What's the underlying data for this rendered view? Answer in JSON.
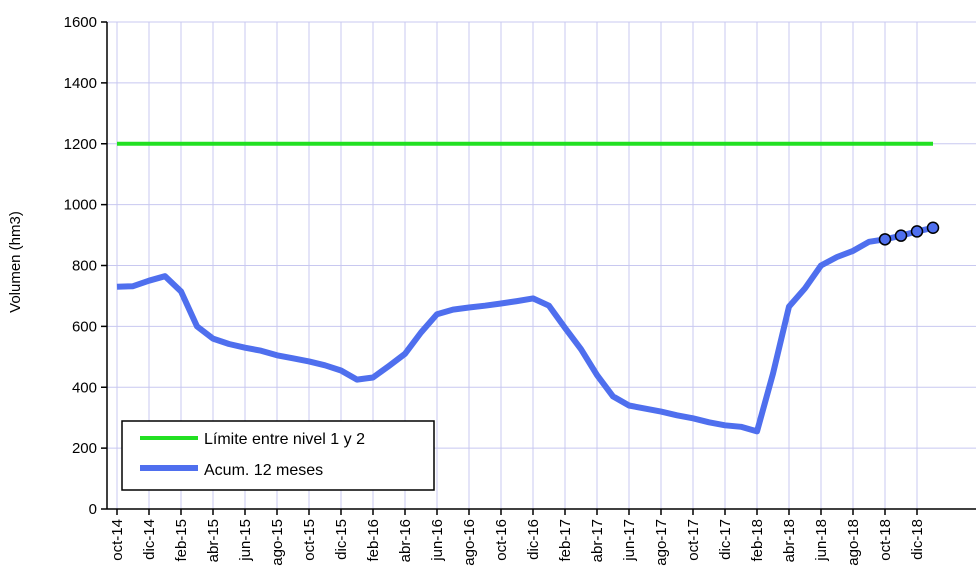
{
  "chart_data": {
    "type": "line",
    "ylabel": "Volumen (hm3)",
    "ylim": [
      0,
      1600
    ],
    "yticks": [
      0,
      200,
      400,
      600,
      800,
      1000,
      1200,
      1400,
      1600
    ],
    "x_tick_labels": [
      "oct-14",
      "dic-14",
      "feb-15",
      "abr-15",
      "jun-15",
      "ago-15",
      "oct-15",
      "dic-15",
      "feb-16",
      "abr-16",
      "jun-16",
      "ago-16",
      "oct-16",
      "dic-16",
      "feb-17",
      "abr-17",
      "jun-17",
      "ago-17",
      "oct-17",
      "dic-17",
      "feb-18",
      "abr-18",
      "jun-18",
      "ago-18",
      "oct-18",
      "dic-18"
    ],
    "x_start": "oct-14",
    "x_unit": "month",
    "grid": true,
    "legend_position": "bottom-left",
    "series": [
      {
        "name": "Límite entre nivel 1 y 2",
        "color": "#22e022",
        "values": [
          1200,
          1200,
          1200,
          1200,
          1200,
          1200,
          1200,
          1200,
          1200,
          1200,
          1200,
          1200,
          1200,
          1200,
          1200,
          1200,
          1200,
          1200,
          1200,
          1200,
          1200,
          1200,
          1200,
          1200,
          1200,
          1200,
          1200,
          1200,
          1200,
          1200,
          1200,
          1200,
          1200,
          1200,
          1200,
          1200,
          1200,
          1200,
          1200,
          1200,
          1200,
          1200,
          1200,
          1200,
          1200,
          1200,
          1200,
          1200,
          1200,
          1200,
          1200,
          1200
        ]
      },
      {
        "name": "Acum. 12 meses",
        "color": "#4f6fee",
        "values": [
          730,
          732,
          750,
          765,
          715,
          600,
          560,
          542,
          530,
          520,
          505,
          495,
          485,
          472,
          455,
          425,
          432,
          470,
          510,
          580,
          640,
          655,
          662,
          668,
          675,
          683,
          692,
          668,
          595,
          525,
          440,
          370,
          340,
          330,
          320,
          308,
          298,
          285,
          275,
          270,
          255,
          445,
          665,
          725,
          800,
          828,
          848,
          878,
          886,
          898,
          912,
          924
        ],
        "marker_indices": [
          48,
          49,
          50,
          51
        ]
      }
    ]
  }
}
